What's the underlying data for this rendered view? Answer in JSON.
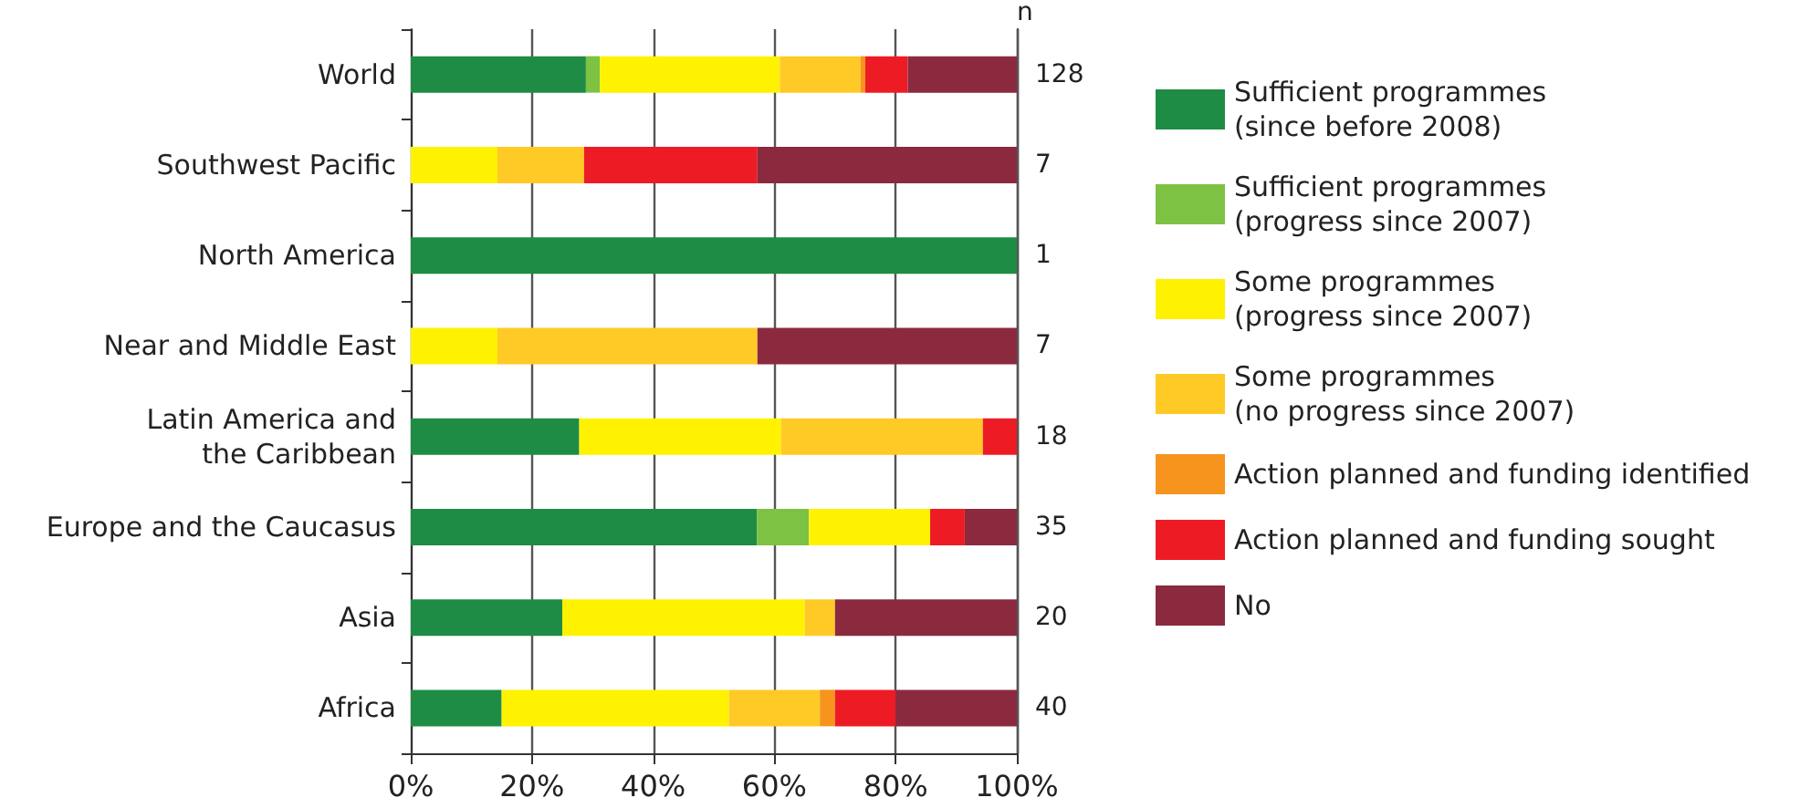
{
  "chart_data": {
    "type": "bar",
    "orientation": "horizontal",
    "stacked": true,
    "categories": [
      "World",
      "Southwest Pacific",
      "North America",
      "Near and Middle East",
      "Latin America and\nthe Caribbean",
      "Europe and the Caucasus",
      "Asia",
      "Africa"
    ],
    "series": [
      {
        "name": "Sufficient programmes\n(since before 2008)",
        "color": "#1e8c45",
        "values": [
          28.9,
          0,
          100,
          0,
          27.8,
          57.1,
          25,
          15
        ]
      },
      {
        "name": "Sufficient programmes\n(progress since 2007)",
        "color": "#7dc242",
        "values": [
          2.3,
          0,
          0,
          0,
          0,
          8.6,
          0,
          0
        ]
      },
      {
        "name": "Some programmes\n(progress since 2007)",
        "color": "#fff200",
        "values": [
          29.7,
          14.3,
          0,
          14.3,
          33.3,
          20,
          40,
          37.5
        ]
      },
      {
        "name": "Some programmes\n(no progress since 2007)",
        "color": "#ffc926",
        "values": [
          13.3,
          14.3,
          0,
          42.9,
          33.3,
          0,
          5,
          15
        ]
      },
      {
        "name": "Action planned and funding identified",
        "color": "#f7941d",
        "values": [
          0.8,
          0,
          0,
          0,
          0,
          0,
          0,
          2.5
        ]
      },
      {
        "name": "Action planned and funding sought",
        "color": "#ed1c24",
        "values": [
          7.0,
          28.6,
          0,
          0,
          5.6,
          5.7,
          0,
          10
        ]
      },
      {
        "name": "No",
        "color": "#8b2a3e",
        "values": [
          18.0,
          42.8,
          0,
          42.8,
          0,
          8.6,
          30,
          20
        ]
      }
    ],
    "xlim": [
      0,
      100
    ],
    "xticks": [
      {
        "value": 0,
        "label": "0%"
      },
      {
        "value": 20,
        "label": "20%"
      },
      {
        "value": 40,
        "label": "40%"
      },
      {
        "value": 60,
        "label": "60%"
      },
      {
        "value": 80,
        "label": "80%"
      },
      {
        "value": 100,
        "label": "100%"
      }
    ],
    "grid": "x",
    "legend": "right",
    "annotations": [
      "n",
      "128",
      "7",
      "1",
      "7",
      "18",
      "35",
      "20",
      "40"
    ]
  }
}
